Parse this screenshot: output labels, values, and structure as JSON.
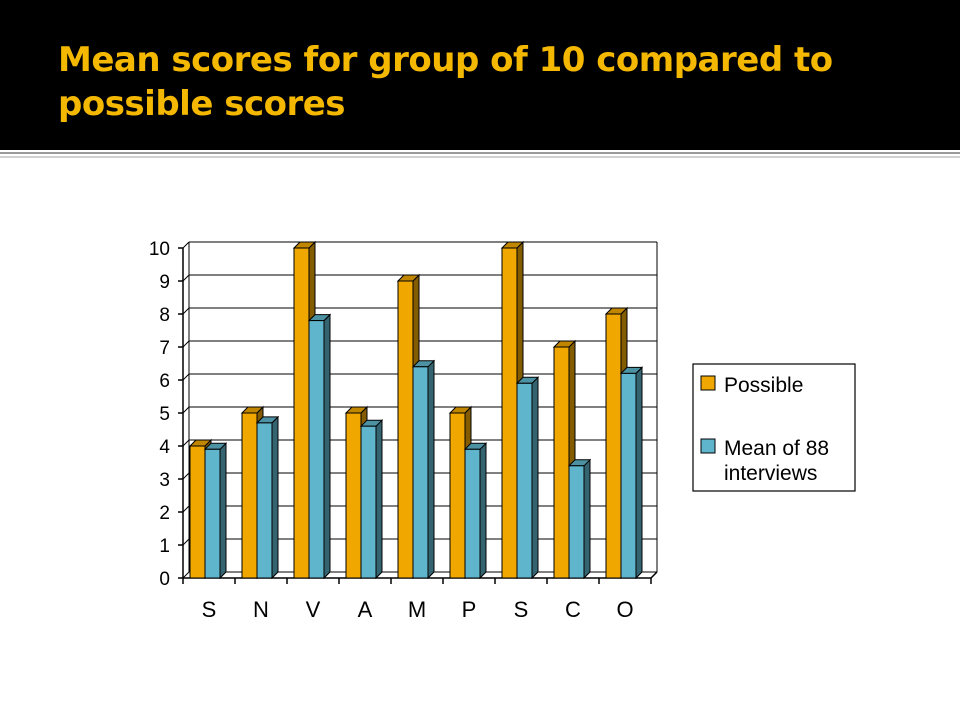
{
  "slide": {
    "title": "Mean scores for group of 10 compared to possible scores"
  },
  "chart_data": {
    "type": "bar",
    "title": "",
    "xlabel": "",
    "ylabel": "",
    "ylim": [
      0,
      10
    ],
    "yticks": [
      0,
      1,
      2,
      3,
      4,
      5,
      6,
      7,
      8,
      9,
      10
    ],
    "grid": true,
    "legend_position": "right",
    "categories": [
      "S",
      "N",
      "V",
      "A",
      "M",
      "P",
      "S",
      "C",
      "O"
    ],
    "series": [
      {
        "name": "Possible",
        "color": "#f0a800",
        "values": [
          4,
          5,
          10,
          5,
          9,
          5,
          10,
          7,
          8
        ]
      },
      {
        "name": "Mean of 88 interviews",
        "color": "#5fb6cc",
        "values": [
          3.9,
          4.7,
          7.8,
          4.6,
          6.4,
          3.9,
          5.9,
          3.4,
          6.2
        ]
      }
    ],
    "legend_lines": [
      [
        "Possible"
      ],
      [
        "Mean of 88",
        "interviews"
      ]
    ]
  }
}
